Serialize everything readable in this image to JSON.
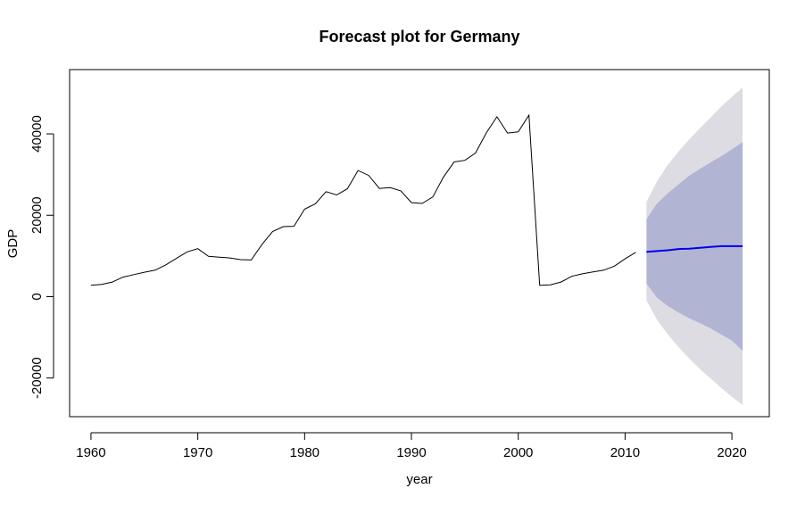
{
  "chart_data": {
    "type": "line",
    "title": "Forecast plot for Germany",
    "xlabel": "year",
    "ylabel": "GDP",
    "xlim": [
      1958,
      2023.5
    ],
    "ylim": [
      -29500,
      55800
    ],
    "x_ticks": [
      1960,
      1970,
      1980,
      1990,
      2000,
      2010,
      2020
    ],
    "y_ticks": [
      -20000,
      0,
      20000,
      40000
    ],
    "grid": false,
    "colors": {
      "history": "#000000",
      "forecast": "#0000ee",
      "band_80": "#b1b5d3",
      "band_95": "#dcdce2"
    },
    "series": [
      {
        "x": [
          1960,
          1961,
          1962,
          1963,
          1964,
          1965,
          1966,
          1967,
          1968,
          1969,
          1970,
          1971,
          1972,
          1973,
          1974,
          1975,
          1976,
          1977,
          1978,
          1979,
          1980,
          1981,
          1982,
          1983,
          1984,
          1985,
          1986,
          1987,
          1988,
          1989,
          1990,
          1991,
          1992,
          1993,
          1994,
          1995,
          1996,
          1997,
          1998,
          1999,
          2000,
          2001,
          2002,
          2003,
          2004,
          2005,
          2006,
          2007,
          2008,
          2009,
          2010,
          2011
        ],
        "values": [
          2800,
          3000,
          3600,
          4800,
          5400,
          6000,
          6500,
          7800,
          9400,
          11000,
          11800,
          9900,
          9700,
          9500,
          9100,
          9000,
          12800,
          16000,
          17200,
          17300,
          21500,
          22800,
          25800,
          25000,
          26500,
          31000,
          29800,
          26600,
          26800,
          26000,
          23100,
          22900,
          24500,
          29400,
          33100,
          33500,
          35300,
          40200,
          44200,
          40200,
          40500,
          44600,
          2800,
          2900,
          3600,
          5000,
          5600,
          6100,
          6500,
          7500,
          9300,
          10900
        ]
      },
      {
        "x": [
          2012,
          2013,
          2014,
          2015,
          2016,
          2017,
          2018,
          2019,
          2020,
          2021
        ],
        "values": [
          11000,
          11200,
          11400,
          11700,
          11800,
          12000,
          12200,
          12400,
          12400,
          12400
        ],
        "lo80": [
          3200,
          -300,
          -2300,
          -3900,
          -5300,
          -6500,
          -7800,
          -9300,
          -10800,
          -13300
        ],
        "hi80": [
          19000,
          22900,
          25400,
          27600,
          29700,
          31400,
          33000,
          34500,
          36200,
          38000
        ],
        "lo95": [
          -1000,
          -5700,
          -9300,
          -12400,
          -15200,
          -17800,
          -20100,
          -22400,
          -24600,
          -26600
        ],
        "hi95": [
          23300,
          28400,
          32400,
          35700,
          38600,
          41400,
          44000,
          46700,
          49100,
          51400
        ]
      }
    ]
  }
}
